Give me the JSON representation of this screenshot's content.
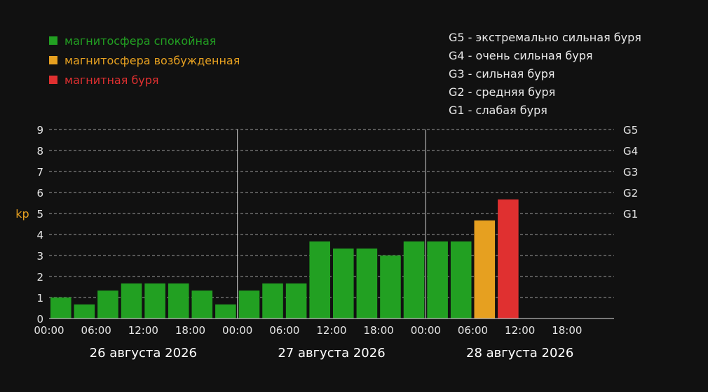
{
  "legend": {
    "items": [
      {
        "label": "магнитосфера спокойная",
        "color": "#22a022"
      },
      {
        "label": "магнитосфера возбужденная",
        "color": "#e6a020"
      },
      {
        "label": "магнитная буря",
        "color": "#e03030"
      }
    ]
  },
  "g_legend": [
    "G5 - экстремально сильная буря",
    "G4 - очень сильная буря",
    "G3 - сильная буря",
    "G2 - средняя буря",
    "G1 - слабая буря"
  ],
  "chart_data": {
    "type": "bar",
    "ylabel": "kp",
    "ylabel_color": "#e6a020",
    "ylim": [
      0,
      9
    ],
    "yticks": [
      0,
      1,
      2,
      3,
      4,
      5,
      6,
      7,
      8,
      9
    ],
    "grid": "dashed horizontal",
    "g_levels": [
      {
        "label": "G1",
        "kp": 5
      },
      {
        "label": "G2",
        "kp": 6
      },
      {
        "label": "G3",
        "kp": 7
      },
      {
        "label": "G4",
        "kp": 8
      },
      {
        "label": "G5",
        "kp": 9
      }
    ],
    "days": [
      "26 августа 2026",
      "27 августа 2026",
      "28 августа 2026"
    ],
    "time_ticks": [
      "00:00",
      "06:00",
      "12:00",
      "18:00"
    ],
    "slots_per_day": 8,
    "colors": {
      "calm": "#22a022",
      "excited": "#e6a020",
      "storm": "#e03030"
    },
    "values": [
      1.0,
      0.67,
      1.33,
      1.67,
      1.67,
      1.67,
      1.33,
      0.67,
      1.33,
      1.67,
      1.67,
      3.67,
      3.33,
      3.33,
      3.0,
      3.67,
      3.67,
      3.67,
      4.67,
      5.67
    ],
    "levels": [
      "calm",
      "calm",
      "calm",
      "calm",
      "calm",
      "calm",
      "calm",
      "calm",
      "calm",
      "calm",
      "calm",
      "calm",
      "calm",
      "calm",
      "calm",
      "calm",
      "calm",
      "calm",
      "excited",
      "storm"
    ]
  }
}
